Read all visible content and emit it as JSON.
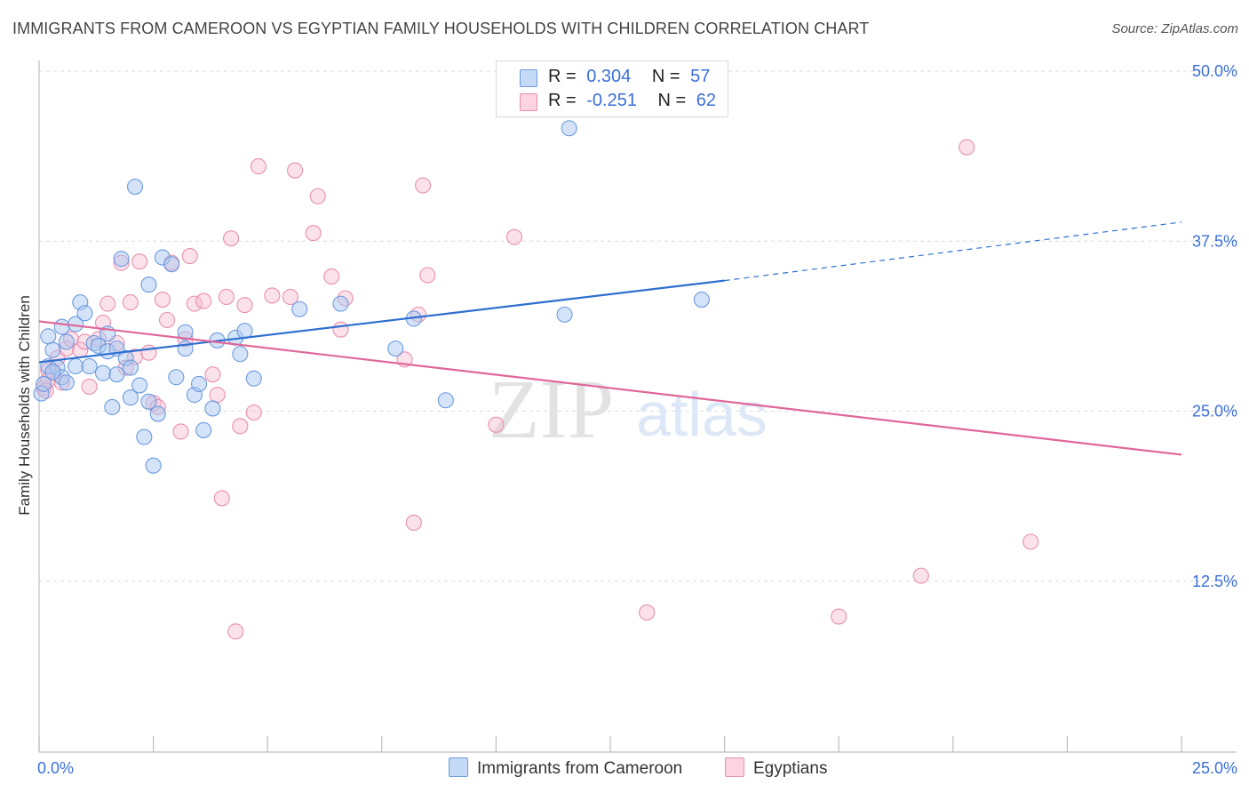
{
  "header": {
    "title": "IMMIGRANTS FROM CAMEROON VS EGYPTIAN FAMILY HOUSEHOLDS WITH CHILDREN CORRELATION CHART",
    "source": "Source: ZipAtlas.com"
  },
  "legend": {
    "series1": {
      "r_label": "R =",
      "r_value": "0.304",
      "n_label": "N =",
      "n_value": "57"
    },
    "series2": {
      "r_label": "R =",
      "r_value": "-0.251",
      "n_label": "N =",
      "n_value": "62"
    }
  },
  "bottom_legend": {
    "series1": "Immigrants from Cameroon",
    "series2": "Egyptians"
  },
  "watermark": {
    "zip": "ZIP",
    "atlas": "atlas"
  },
  "colors": {
    "blue_fill": "#a9c8f0",
    "blue_stroke": "#6d9be0",
    "blue_line": "#2e6fd1",
    "pink_fill": "#f6bcd0",
    "pink_stroke": "#e98fb0",
    "pink_line": "#e0679a",
    "tick_text": "#3a6fd8",
    "grid": "#dcdcdc"
  },
  "chart_data": {
    "type": "scatter",
    "title": "IMMIGRANTS FROM CAMEROON VS EGYPTIAN FAMILY HOUSEHOLDS WITH CHILDREN CORRELATION CHART",
    "xlabel": "",
    "ylabel": "Family Households with Children",
    "xlim": [
      0,
      25
    ],
    "ylim": [
      0,
      52
    ],
    "x_tick_labels": [
      "0.0%",
      "25.0%"
    ],
    "y_ticks": [
      12.5,
      25,
      37.5,
      50
    ],
    "y_tick_labels": [
      "12.5%",
      "25.0%",
      "37.5%",
      "50.0%"
    ],
    "grid": true,
    "series": [
      {
        "name": "Immigrants from Cameroon",
        "r": 0.304,
        "n": 57,
        "trend": {
          "x0": 0,
          "y0": 28.6,
          "x1": 15,
          "y1": 34.6,
          "dash_to_x": 25,
          "dash_to_y": 38.9
        },
        "points": [
          [
            0.05,
            26.3
          ],
          [
            0.2,
            28.3
          ],
          [
            0.2,
            30.5
          ],
          [
            0.3,
            29.5
          ],
          [
            0.4,
            28.2
          ],
          [
            0.5,
            31.2
          ],
          [
            0.5,
            27.5
          ],
          [
            0.6,
            30.1
          ],
          [
            0.6,
            27.1
          ],
          [
            0.8,
            31.4
          ],
          [
            0.8,
            28.3
          ],
          [
            0.9,
            33.0
          ],
          [
            1.0,
            32.2
          ],
          [
            1.1,
            28.3
          ],
          [
            1.2,
            30.0
          ],
          [
            1.3,
            29.8
          ],
          [
            1.4,
            27.8
          ],
          [
            1.5,
            30.7
          ],
          [
            1.5,
            29.4
          ],
          [
            1.6,
            25.3
          ],
          [
            1.7,
            29.6
          ],
          [
            1.7,
            27.7
          ],
          [
            1.8,
            36.2
          ],
          [
            1.9,
            28.9
          ],
          [
            2.0,
            26.0
          ],
          [
            2.0,
            28.2
          ],
          [
            2.1,
            41.5
          ],
          [
            2.2,
            26.9
          ],
          [
            2.3,
            23.1
          ],
          [
            2.4,
            25.7
          ],
          [
            2.4,
            34.3
          ],
          [
            2.5,
            21.0
          ],
          [
            2.6,
            24.8
          ],
          [
            2.7,
            36.3
          ],
          [
            2.9,
            35.8
          ],
          [
            3.0,
            27.5
          ],
          [
            3.2,
            29.6
          ],
          [
            3.2,
            30.8
          ],
          [
            3.4,
            26.2
          ],
          [
            3.5,
            27.0
          ],
          [
            3.6,
            23.6
          ],
          [
            3.8,
            25.2
          ],
          [
            3.9,
            30.2
          ],
          [
            4.3,
            30.4
          ],
          [
            4.4,
            29.2
          ],
          [
            4.5,
            30.9
          ],
          [
            4.7,
            27.4
          ],
          [
            5.7,
            32.5
          ],
          [
            6.6,
            32.9
          ],
          [
            7.8,
            29.6
          ],
          [
            8.2,
            31.8
          ],
          [
            8.9,
            25.8
          ],
          [
            11.5,
            32.1
          ],
          [
            11.6,
            45.8
          ],
          [
            14.5,
            33.2
          ],
          [
            0.1,
            27.0
          ],
          [
            0.3,
            27.9
          ]
        ]
      },
      {
        "name": "Egyptians",
        "r": -0.251,
        "n": 62,
        "trend": {
          "x0": 0,
          "y0": 31.6,
          "x1": 25,
          "y1": 21.8
        },
        "points": [
          [
            0.1,
            26.7
          ],
          [
            0.2,
            27.3
          ],
          [
            0.3,
            27.8
          ],
          [
            0.4,
            28.9
          ],
          [
            0.5,
            27.1
          ],
          [
            0.6,
            29.6
          ],
          [
            0.7,
            30.3
          ],
          [
            0.9,
            29.5
          ],
          [
            1.0,
            30.1
          ],
          [
            1.1,
            26.8
          ],
          [
            1.3,
            30.3
          ],
          [
            1.4,
            31.5
          ],
          [
            1.5,
            32.9
          ],
          [
            1.7,
            30.0
          ],
          [
            1.8,
            35.9
          ],
          [
            1.9,
            28.2
          ],
          [
            2.0,
            33.0
          ],
          [
            2.1,
            29.0
          ],
          [
            2.2,
            36.0
          ],
          [
            2.4,
            29.3
          ],
          [
            2.5,
            25.6
          ],
          [
            2.6,
            25.3
          ],
          [
            2.7,
            33.2
          ],
          [
            2.8,
            31.7
          ],
          [
            2.9,
            35.9
          ],
          [
            3.1,
            23.5
          ],
          [
            3.2,
            30.3
          ],
          [
            3.3,
            36.4
          ],
          [
            3.4,
            32.9
          ],
          [
            3.6,
            33.1
          ],
          [
            3.8,
            27.7
          ],
          [
            3.9,
            26.2
          ],
          [
            4.0,
            18.6
          ],
          [
            4.1,
            33.4
          ],
          [
            4.2,
            37.7
          ],
          [
            4.3,
            8.8
          ],
          [
            4.4,
            23.9
          ],
          [
            4.5,
            32.8
          ],
          [
            4.7,
            24.9
          ],
          [
            4.8,
            43.0
          ],
          [
            5.1,
            33.5
          ],
          [
            5.5,
            33.4
          ],
          [
            5.6,
            42.7
          ],
          [
            6.0,
            38.1
          ],
          [
            6.1,
            40.8
          ],
          [
            6.4,
            34.9
          ],
          [
            6.6,
            31.0
          ],
          [
            6.7,
            33.3
          ],
          [
            8.0,
            28.8
          ],
          [
            8.2,
            16.8
          ],
          [
            8.3,
            32.1
          ],
          [
            8.4,
            41.6
          ],
          [
            8.5,
            35.0
          ],
          [
            10.0,
            24.0
          ],
          [
            10.4,
            37.8
          ],
          [
            13.3,
            10.2
          ],
          [
            17.5,
            9.9
          ],
          [
            19.3,
            12.9
          ],
          [
            20.3,
            44.4
          ],
          [
            21.7,
            15.4
          ],
          [
            0.2,
            28.0
          ],
          [
            0.15,
            26.5
          ]
        ]
      }
    ]
  }
}
